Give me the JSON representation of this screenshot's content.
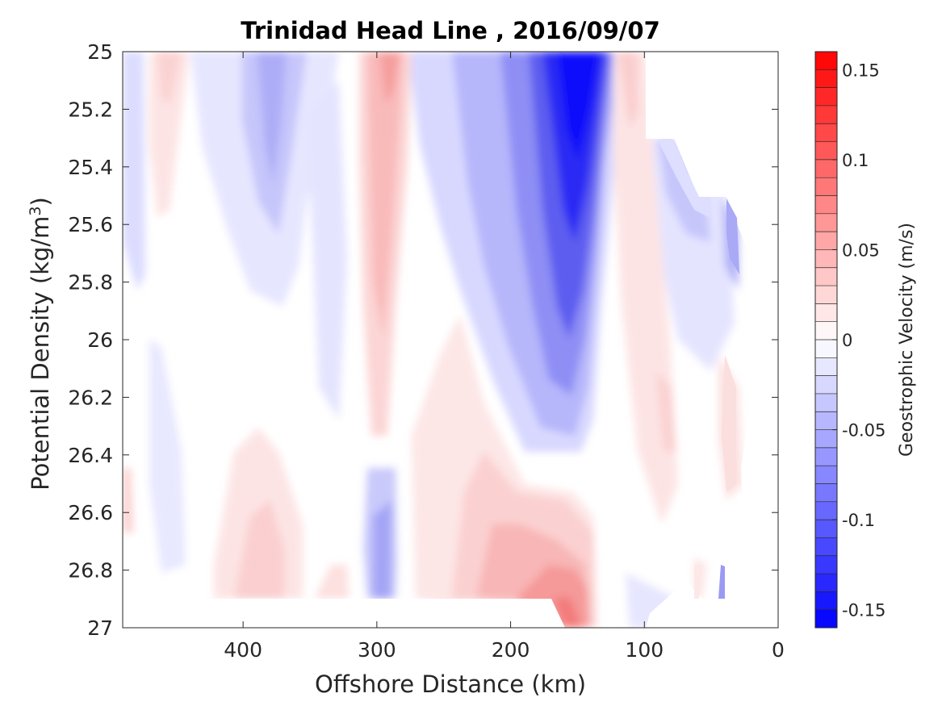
{
  "chart_data": {
    "type": "contour",
    "title": "Trinidad Head Line , 2016/09/07",
    "xlabel": "Offshore Distance (km)",
    "ylabel": "Potential Density (kg/m",
    "ylabel_sup": "3",
    "ylabel_close": ")",
    "xlim": [
      490,
      0
    ],
    "ylim": [
      25,
      27
    ],
    "x_reversed": true,
    "y_reversed": true,
    "xticks": [
      400,
      300,
      200,
      100,
      0
    ],
    "yticks": [
      25,
      25.2,
      25.4,
      25.6,
      25.8,
      26,
      26.2,
      26.4,
      26.6,
      26.8,
      27
    ],
    "colorbar": {
      "label": "Geostrophic Velocity (m/s)",
      "clim": [
        -0.16,
        0.16
      ],
      "ticks": [
        0.15,
        0.1,
        0.05,
        0,
        -0.05,
        -0.1,
        -0.15
      ],
      "levels": 32,
      "low_color": "#0000ff",
      "mid_color": "#ffffff",
      "high_color": "#ff0000"
    },
    "features": [
      {
        "name": "strong-southward-jet",
        "x": 150,
        "y_top": 25.0,
        "y_bottom": 26.4,
        "peak_value": -0.15
      },
      {
        "name": "northward-band-300km",
        "x": 295,
        "y_top": 25.0,
        "y_bottom": 26.3,
        "peak_value": 0.05
      },
      {
        "name": "northward-deep-core",
        "x": 160,
        "y_top": 26.5,
        "y_bottom": 27.0,
        "peak_value": 0.08
      },
      {
        "name": "northward-band-110km",
        "x": 110,
        "y_top": 25.0,
        "y_bottom": 26.6,
        "peak_value": 0.03
      },
      {
        "name": "southward-band-390km",
        "x": 385,
        "y_top": 25.0,
        "y_bottom": 26.0,
        "peak_value": -0.04
      }
    ]
  }
}
